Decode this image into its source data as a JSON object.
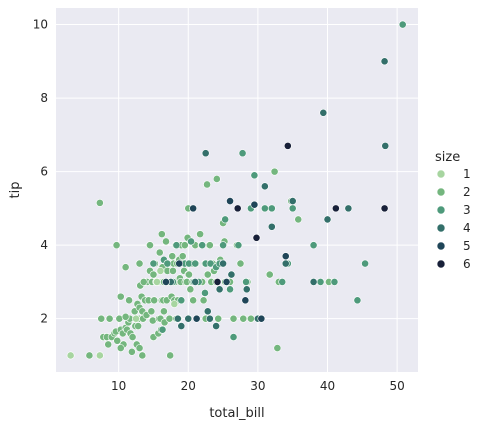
{
  "chart_data": {
    "type": "scatter",
    "xlabel": "total_bill",
    "ylabel": "tip",
    "xlim": [
      1.0,
      53.0
    ],
    "ylim": [
      0.55,
      10.45
    ],
    "x_ticks": [
      10,
      20,
      30,
      40,
      50
    ],
    "y_ticks": [
      2,
      4,
      6,
      8,
      10
    ],
    "grid": true,
    "legend": {
      "title": "size",
      "placement": "right",
      "entries": [
        {
          "label": "1",
          "color": "#a7d5a0"
        },
        {
          "label": "2",
          "color": "#74b67e"
        },
        {
          "label": "3",
          "color": "#4e9a7b"
        },
        {
          "label": "4",
          "color": "#336f6a"
        },
        {
          "label": "5",
          "color": "#1f4558"
        },
        {
          "label": "6",
          "color": "#182039"
        }
      ]
    },
    "points": [
      [
        3.1,
        1.0,
        1
      ],
      [
        5.8,
        1.0,
        2
      ],
      [
        7.3,
        1.0,
        1
      ],
      [
        7.3,
        5.15,
        2
      ],
      [
        7.5,
        2.0,
        2
      ],
      [
        7.8,
        1.5,
        2
      ],
      [
        8.3,
        1.5,
        2
      ],
      [
        8.5,
        1.3,
        2
      ],
      [
        8.7,
        2.0,
        2
      ],
      [
        9.0,
        1.5,
        2
      ],
      [
        9.4,
        1.6,
        2
      ],
      [
        9.6,
        1.65,
        2
      ],
      [
        9.7,
        4.0,
        2
      ],
      [
        9.8,
        1.4,
        2
      ],
      [
        10.1,
        2.0,
        2
      ],
      [
        10.3,
        2.6,
        2
      ],
      [
        10.3,
        1.7,
        2
      ],
      [
        10.6,
        1.6,
        2
      ],
      [
        10.7,
        1.3,
        2
      ],
      [
        10.3,
        1.2,
        2
      ],
      [
        11.0,
        1.75,
        2
      ],
      [
        11.2,
        1.7,
        2
      ],
      [
        11.4,
        1.9,
        2
      ],
      [
        11.6,
        2.0,
        2
      ],
      [
        11.7,
        1.6,
        2
      ],
      [
        11.9,
        1.1,
        2
      ],
      [
        12.0,
        1.5,
        2
      ],
      [
        11.0,
        3.4,
        2
      ],
      [
        11.5,
        2.5,
        2
      ],
      [
        11.0,
        2.05,
        2
      ],
      [
        12.3,
        2.2,
        2
      ],
      [
        12.4,
        1.8,
        2
      ],
      [
        12.5,
        2.0,
        2
      ],
      [
        12.6,
        1.3,
        2
      ],
      [
        12.7,
        2.4,
        2
      ],
      [
        12.8,
        1.8,
        2
      ],
      [
        12.9,
        2.0,
        2
      ],
      [
        13.0,
        2.3,
        2
      ],
      [
        13.0,
        1.2,
        2
      ],
      [
        13.1,
        2.9,
        2
      ],
      [
        13.3,
        2.6,
        2
      ],
      [
        13.4,
        2.2,
        2
      ],
      [
        13.5,
        2.0,
        2
      ],
      [
        13.8,
        2.5,
        2
      ],
      [
        13.9,
        3.0,
        2
      ],
      [
        13.0,
        3.5,
        2
      ],
      [
        13.4,
        1.0,
        2
      ],
      [
        14.0,
        2.1,
        2
      ],
      [
        14.1,
        3.0,
        2
      ],
      [
        14.3,
        2.5,
        2
      ],
      [
        14.5,
        3.3,
        2
      ],
      [
        14.7,
        2.2,
        2
      ],
      [
        14.8,
        3.0,
        2
      ],
      [
        14.9,
        1.95,
        2
      ],
      [
        15.0,
        1.5,
        2
      ],
      [
        14.5,
        4.0,
        2
      ],
      [
        15.0,
        3.2,
        2
      ],
      [
        15.1,
        2.5,
        2
      ],
      [
        15.2,
        3.5,
        2
      ],
      [
        15.4,
        3.0,
        2
      ],
      [
        15.5,
        3.0,
        2
      ],
      [
        15.7,
        3.0,
        2
      ],
      [
        15.7,
        1.6,
        2
      ],
      [
        15.8,
        2.0,
        2
      ],
      [
        16.0,
        2.0,
        2
      ],
      [
        15.9,
        3.8,
        2
      ],
      [
        16.1,
        1.7,
        2
      ],
      [
        16.2,
        2.5,
        2
      ],
      [
        16.2,
        4.3,
        2
      ],
      [
        16.3,
        3.4,
        2
      ],
      [
        16.4,
        2.5,
        2
      ],
      [
        16.5,
        3.0,
        2
      ],
      [
        16.5,
        2.2,
        2
      ],
      [
        16.6,
        1.9,
        2
      ],
      [
        16.8,
        4.1,
        2
      ],
      [
        16.9,
        2.5,
        2
      ],
      [
        17.0,
        3.3,
        2
      ],
      [
        17.1,
        3.0,
        2
      ],
      [
        17.2,
        3.5,
        2
      ],
      [
        17.3,
        2.0,
        2
      ],
      [
        17.4,
        1.0,
        2
      ],
      [
        17.5,
        3.0,
        2
      ],
      [
        17.6,
        2.6,
        2
      ],
      [
        17.7,
        3.7,
        2
      ],
      [
        17.8,
        3.3,
        2
      ],
      [
        17.9,
        3.5,
        2
      ],
      [
        18.0,
        2.5,
        2
      ],
      [
        18.1,
        3.0,
        2
      ],
      [
        18.2,
        4.0,
        2
      ],
      [
        18.3,
        2.0,
        2
      ],
      [
        18.4,
        3.5,
        2
      ],
      [
        18.5,
        2.5,
        2
      ],
      [
        18.6,
        2.0,
        2
      ],
      [
        18.7,
        3.6,
        2
      ],
      [
        18.8,
        3.1,
        2
      ],
      [
        18.9,
        3.0,
        2
      ],
      [
        19.0,
        4.0,
        2
      ],
      [
        19.2,
        3.7,
        2
      ],
      [
        19.4,
        3.3,
        2
      ],
      [
        19.5,
        4.0,
        2
      ],
      [
        19.6,
        3.0,
        2
      ],
      [
        19.8,
        3.0,
        2
      ],
      [
        19.9,
        4.2,
        2
      ],
      [
        20.0,
        3.2,
        2
      ],
      [
        20.1,
        3.2,
        2
      ],
      [
        20.3,
        2.8,
        2
      ],
      [
        20.5,
        3.5,
        2
      ],
      [
        20.6,
        3.0,
        2
      ],
      [
        20.7,
        2.5,
        2
      ],
      [
        21.0,
        4.0,
        2
      ],
      [
        21.1,
        3.5,
        2
      ],
      [
        21.5,
        3.0,
        2
      ],
      [
        21.7,
        4.3,
        2
      ],
      [
        22.0,
        3.0,
        2
      ],
      [
        22.2,
        2.5,
        2
      ],
      [
        22.4,
        3.5,
        2
      ],
      [
        22.5,
        2.0,
        2
      ],
      [
        22.7,
        5.65,
        2
      ],
      [
        22.8,
        3.2,
        2
      ],
      [
        23.0,
        4.0,
        2
      ],
      [
        23.1,
        4.0,
        2
      ],
      [
        23.3,
        3.0,
        2
      ],
      [
        23.5,
        3.5,
        2
      ],
      [
        23.7,
        3.3,
        2
      ],
      [
        24.0,
        3.0,
        2
      ],
      [
        24.1,
        5.8,
        2
      ],
      [
        24.3,
        2.0,
        2
      ],
      [
        24.6,
        3.6,
        2
      ],
      [
        24.7,
        3.5,
        2
      ],
      [
        25.0,
        4.6,
        2
      ],
      [
        25.2,
        4.1,
        2
      ],
      [
        25.3,
        3.0,
        2
      ],
      [
        25.7,
        3.0,
        2
      ],
      [
        26.0,
        3.0,
        2
      ],
      [
        26.5,
        2.0,
        2
      ],
      [
        27.0,
        4.0,
        2
      ],
      [
        27.5,
        3.5,
        2
      ],
      [
        27.9,
        2.0,
        2
      ],
      [
        28.5,
        3.0,
        2
      ],
      [
        29.0,
        2.0,
        2
      ],
      [
        29.8,
        4.2,
        2
      ],
      [
        30.4,
        2.0,
        2
      ],
      [
        31.7,
        3.2,
        2
      ],
      [
        32.4,
        6.0,
        2
      ],
      [
        32.8,
        1.2,
        2
      ],
      [
        33.0,
        3.0,
        2
      ],
      [
        34.8,
        5.2,
        2
      ],
      [
        35.8,
        4.7,
        2
      ],
      [
        40.2,
        3.0,
        2
      ],
      [
        15.5,
        3.0,
        1
      ],
      [
        16.0,
        3.3,
        1
      ],
      [
        18.0,
        2.4,
        1
      ],
      [
        12.5,
        2.0,
        1
      ],
      [
        21.9,
        4.0,
        2
      ],
      [
        20.0,
        5.0,
        2
      ],
      [
        13.6,
        3.0,
        2
      ],
      [
        16.3,
        1.7,
        3
      ],
      [
        16.5,
        3.6,
        3
      ],
      [
        15.0,
        3.5,
        3
      ],
      [
        17.0,
        3.5,
        3
      ],
      [
        17.8,
        3.0,
        3
      ],
      [
        18.3,
        4.0,
        3
      ],
      [
        19.5,
        3.5,
        3
      ],
      [
        19.0,
        2.5,
        3
      ],
      [
        20.1,
        3.5,
        3
      ],
      [
        20.8,
        3.0,
        3
      ],
      [
        21.0,
        3.5,
        3
      ],
      [
        21.5,
        3.0,
        3
      ],
      [
        22.0,
        4.0,
        3
      ],
      [
        22.5,
        3.5,
        3
      ],
      [
        23.2,
        3.5,
        3
      ],
      [
        24.0,
        3.4,
        3
      ],
      [
        24.5,
        3.5,
        3
      ],
      [
        25.0,
        4.0,
        3
      ],
      [
        26.0,
        2.8,
        3
      ],
      [
        26.5,
        1.5,
        3
      ],
      [
        27.2,
        4.0,
        3
      ],
      [
        27.8,
        6.5,
        3
      ],
      [
        28.3,
        3.0,
        3
      ],
      [
        29.0,
        5.0,
        3
      ],
      [
        29.5,
        5.9,
        3
      ],
      [
        30.1,
        2.0,
        3
      ],
      [
        31.0,
        5.0,
        3
      ],
      [
        32.0,
        5.0,
        3
      ],
      [
        33.5,
        3.0,
        3
      ],
      [
        34.3,
        3.5,
        3
      ],
      [
        35.0,
        5.0,
        3
      ],
      [
        38.0,
        4.0,
        3
      ],
      [
        39.0,
        3.0,
        3
      ],
      [
        41.0,
        3.0,
        3
      ],
      [
        44.3,
        2.5,
        3
      ],
      [
        45.4,
        3.5,
        3
      ],
      [
        50.8,
        10.0,
        3
      ],
      [
        20.4,
        4.1,
        3
      ],
      [
        22.4,
        2.7,
        3
      ],
      [
        25.3,
        4.7,
        3
      ],
      [
        18.5,
        2.0,
        4
      ],
      [
        20.0,
        2.0,
        4
      ],
      [
        21.0,
        3.0,
        4
      ],
      [
        22.5,
        6.5,
        4
      ],
      [
        23.1,
        2.0,
        4
      ],
      [
        24.0,
        1.8,
        4
      ],
      [
        25.0,
        3.5,
        4
      ],
      [
        26.2,
        3.2,
        4
      ],
      [
        28.4,
        2.8,
        4
      ],
      [
        30.0,
        2.0,
        4
      ],
      [
        31.0,
        5.6,
        4
      ],
      [
        32.0,
        4.5,
        4
      ],
      [
        34.0,
        3.5,
        4
      ],
      [
        35.0,
        5.2,
        4
      ],
      [
        38.0,
        3.0,
        4
      ],
      [
        39.4,
        7.6,
        4
      ],
      [
        40.0,
        4.7,
        4
      ],
      [
        43.0,
        5.0,
        4
      ],
      [
        48.2,
        9.0,
        4
      ],
      [
        48.3,
        6.7,
        4
      ],
      [
        17.5,
        3.0,
        4
      ],
      [
        19.0,
        1.8,
        4
      ],
      [
        22.8,
        2.2,
        4
      ],
      [
        24.5,
        2.8,
        4
      ],
      [
        20.7,
        5.0,
        5
      ],
      [
        26.0,
        5.2,
        5
      ],
      [
        28.2,
        2.5,
        5
      ],
      [
        29.5,
        5.1,
        5
      ],
      [
        30.5,
        2.0,
        5
      ],
      [
        34.0,
        3.7,
        5
      ],
      [
        16.8,
        3.0,
        5
      ],
      [
        18.7,
        3.5,
        5
      ],
      [
        21.2,
        2.0,
        5
      ],
      [
        25.5,
        3.0,
        5
      ],
      [
        27.1,
        5.0,
        6
      ],
      [
        29.8,
        4.2,
        6
      ],
      [
        34.3,
        6.7,
        6
      ],
      [
        41.2,
        5.0,
        6
      ],
      [
        48.2,
        5.0,
        6
      ],
      [
        24.2,
        3.0,
        6
      ]
    ]
  }
}
